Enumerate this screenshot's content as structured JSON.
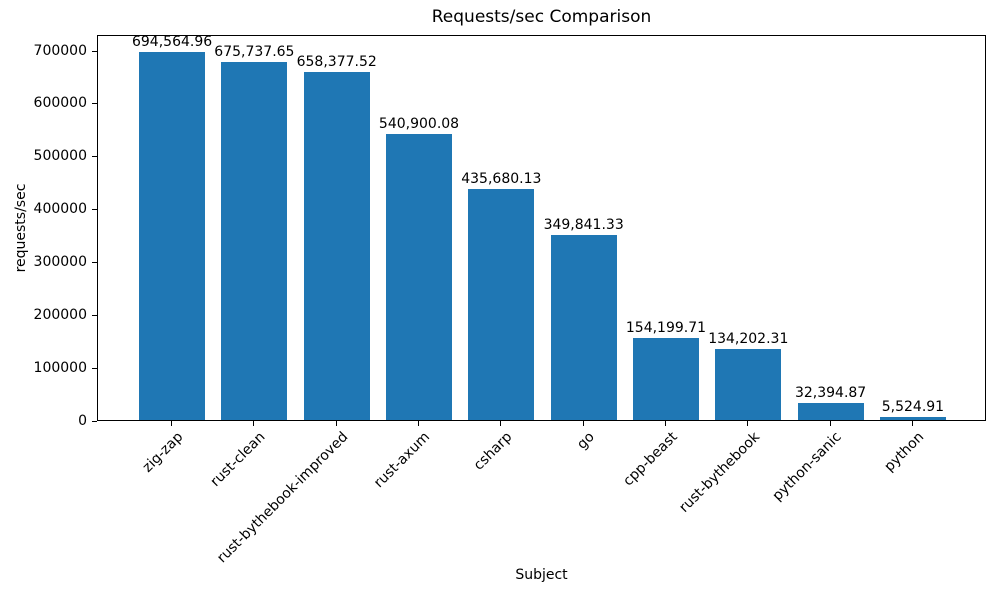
{
  "chart_data": {
    "type": "bar",
    "title": "Requests/sec Comparison",
    "xlabel": "Subject",
    "ylabel": "requests/sec",
    "categories": [
      "zig-zap",
      "rust-clean",
      "rust-bythebook-improved",
      "rust-axum",
      "csharp",
      "go",
      "cpp-beast",
      "rust-bythebook",
      "python-sanic",
      "python"
    ],
    "values": [
      694564.96,
      675737.65,
      658377.52,
      540900.08,
      435680.13,
      349841.33,
      154199.71,
      134202.31,
      32394.87,
      5524.91
    ],
    "value_labels": [
      "694,564.96",
      "675,737.65",
      "658,377.52",
      "540,900.08",
      "435,680.13",
      "349,841.33",
      "154,199.71",
      "134,202.31",
      "32,394.87",
      "5,524.91"
    ],
    "yticks": [
      0,
      100000,
      200000,
      300000,
      400000,
      500000,
      600000,
      700000
    ],
    "ytick_labels": [
      "0",
      "100000",
      "200000",
      "300000",
      "400000",
      "500000",
      "600000",
      "700000"
    ],
    "ylim": [
      0,
      729293
    ],
    "xlim": [
      -0.9,
      9.9
    ],
    "bar_width_fraction": 0.8,
    "bar_color": "#1f77b4",
    "grid": false,
    "legend": null,
    "x_tick_rotation_deg": 45
  }
}
